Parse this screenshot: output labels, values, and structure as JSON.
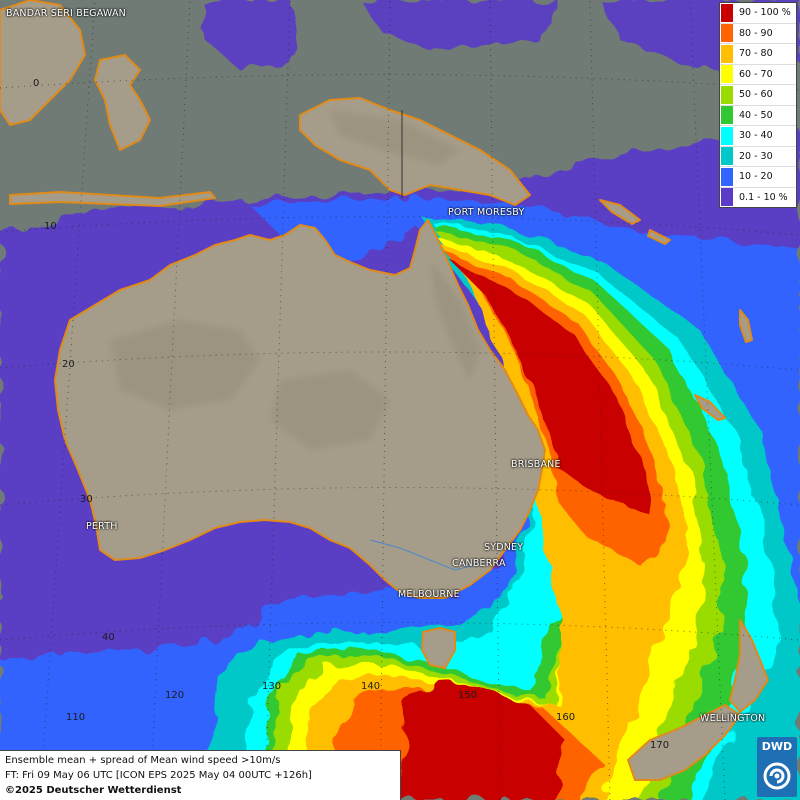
{
  "cities": {
    "bandar_seri_begawan": "BANDAR SERI BEGAWAN",
    "port_moresby": "PORT MORESBY",
    "brisbane": "BRISBANE",
    "sydney": "SYDNEY",
    "canberra": "CANBERRA",
    "melbourne": "MELBOURNE",
    "perth": "PERTH",
    "wellington": "WELLINGTON"
  },
  "grid_labels": {
    "lat_0": "0",
    "lat_10": "10",
    "lat_20": "20",
    "lat_30": "30",
    "lat_40": "40",
    "lon_110": "110",
    "lon_120": "120",
    "lon_130": "130",
    "lon_140": "140",
    "lon_150": "150",
    "lon_160": "160",
    "lon_170": "170"
  },
  "legend": [
    {
      "label": "90 - 100 %",
      "color": "#c80000"
    },
    {
      "label": "80 - 90",
      "color": "#ff6400"
    },
    {
      "label": "70 - 80",
      "color": "#ffbe00"
    },
    {
      "label": "60 - 70",
      "color": "#ffff00"
    },
    {
      "label": "50 - 60",
      "color": "#9bdc00"
    },
    {
      "label": "40 - 50",
      "color": "#32c832"
    },
    {
      "label": "30 - 40",
      "color": "#00ffff"
    },
    {
      "label": "20 - 30",
      "color": "#00c8c8"
    },
    {
      "label": "10 - 20",
      "color": "#3264ff"
    },
    {
      "label": "0.1 - 10 %",
      "color": "#5a3cc8"
    }
  ],
  "info": {
    "line1": "Ensemble mean + spread of Mean wind speed >10m/s",
    "line2": "FT: Fri 09 May 06 UTC [ICON EPS 2025 May 04 00UTC +126h]",
    "line3": "©2025 Deutscher Wetterdienst"
  },
  "logo": {
    "text": "DWD",
    "color": "#1f6fb5"
  },
  "colors": {
    "sea": "#6f7b74",
    "land": "#a59d89",
    "coastline": "#e08a1a"
  }
}
